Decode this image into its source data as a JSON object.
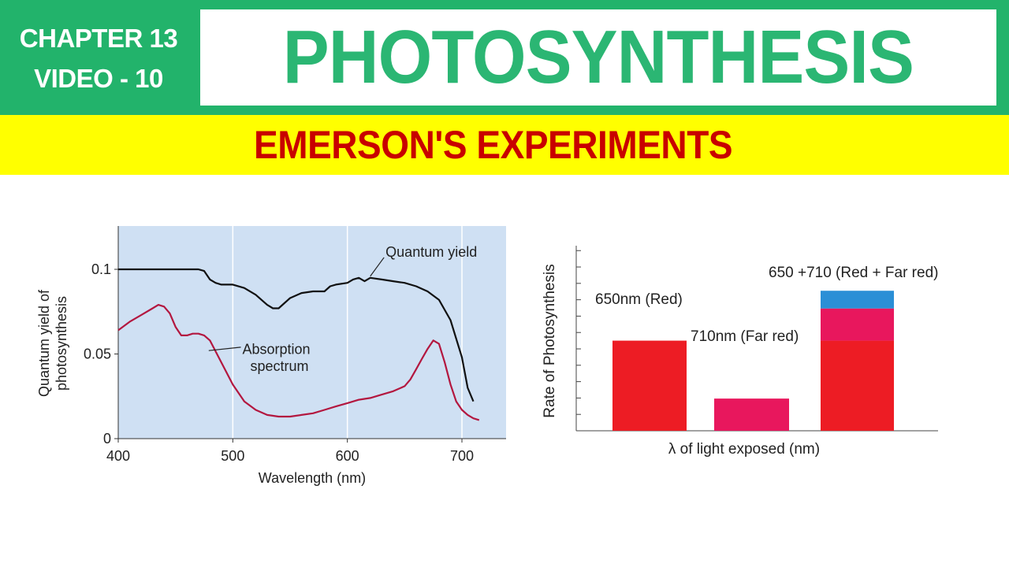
{
  "header": {
    "chapter": "CHAPTER 13",
    "video": "VIDEO - 10",
    "title": "PHOTOSYNTHESIS",
    "subtitle": "EMERSON'S EXPERIMENTS"
  },
  "colors": {
    "header_green": "#22b36b",
    "title_green": "#2bb673",
    "subtitle_band": "#ffff00",
    "subtitle_text": "#c80000",
    "plot_background": "#cfe0f3",
    "quantum_yield_line": "#111111",
    "absorption_line": "#b3173f",
    "red_bar": "#ed1c24",
    "far_red_bar": "#e8175d",
    "enhancement_bar": "#2b8fd6"
  },
  "chart_data": [
    {
      "type": "line",
      "title": "",
      "xlabel": "Wavelength (nm)",
      "ylabel": "Quantum yield of photosynthesis",
      "xlim": [
        400,
        720
      ],
      "ylim": [
        0,
        0.125
      ],
      "xticks": [
        "400",
        "500",
        "600",
        "700"
      ],
      "yticks": [
        "0",
        "0.05",
        "0.1"
      ],
      "grid": "vertical",
      "series": [
        {
          "name": "Quantum yield",
          "x": [
            400,
            420,
            440,
            460,
            470,
            475,
            480,
            485,
            490,
            500,
            510,
            520,
            530,
            535,
            540,
            545,
            550,
            560,
            570,
            580,
            585,
            590,
            600,
            605,
            610,
            615,
            620,
            630,
            640,
            650,
            660,
            670,
            680,
            690,
            700,
            705,
            710
          ],
          "y": [
            0.1,
            0.1,
            0.1,
            0.1,
            0.1,
            0.099,
            0.094,
            0.092,
            0.091,
            0.091,
            0.089,
            0.085,
            0.079,
            0.077,
            0.077,
            0.08,
            0.083,
            0.086,
            0.087,
            0.087,
            0.09,
            0.091,
            0.092,
            0.094,
            0.095,
            0.093,
            0.095,
            0.094,
            0.093,
            0.092,
            0.09,
            0.087,
            0.082,
            0.07,
            0.048,
            0.03,
            0.022
          ]
        },
        {
          "name": "Absorption spectrum",
          "x": [
            400,
            410,
            420,
            430,
            435,
            440,
            445,
            450,
            455,
            460,
            465,
            470,
            475,
            480,
            490,
            500,
            510,
            520,
            530,
            540,
            550,
            560,
            570,
            580,
            590,
            600,
            610,
            620,
            630,
            640,
            650,
            655,
            660,
            665,
            670,
            675,
            680,
            685,
            690,
            695,
            700,
            705,
            710,
            715
          ],
          "y": [
            0.064,
            0.069,
            0.073,
            0.077,
            0.079,
            0.078,
            0.074,
            0.066,
            0.061,
            0.061,
            0.062,
            0.062,
            0.061,
            0.058,
            0.045,
            0.032,
            0.022,
            0.017,
            0.014,
            0.013,
            0.013,
            0.014,
            0.015,
            0.017,
            0.019,
            0.021,
            0.023,
            0.024,
            0.026,
            0.028,
            0.031,
            0.035,
            0.041,
            0.047,
            0.053,
            0.058,
            0.056,
            0.045,
            0.032,
            0.022,
            0.017,
            0.014,
            0.012,
            0.011
          ]
        }
      ],
      "annotations": [
        {
          "series": "Quantum yield",
          "text": "Quantum yield"
        },
        {
          "series": "Absorption spectrum",
          "text_line1": "Absorption",
          "text_line2": "spectrum"
        }
      ]
    },
    {
      "type": "bar",
      "title": "",
      "xlabel": "λ of light exposed (nm)",
      "ylabel": "Rate of Photosynthesis",
      "ylim": [
        0,
        11.5
      ],
      "grid": "none",
      "bars": [
        {
          "label": "650nm (Red)",
          "segments": [
            {
              "value": 5.6,
              "color": "red"
            }
          ]
        },
        {
          "label": "710nm (Far red)",
          "segments": [
            {
              "value": 2.0,
              "color": "far_red"
            }
          ]
        },
        {
          "label": "650 +710 (Red + Far red)",
          "segments": [
            {
              "value": 5.6,
              "color": "red"
            },
            {
              "value": 2.0,
              "color": "far_red"
            },
            {
              "value": 1.1,
              "color": "enhancement"
            }
          ]
        }
      ]
    }
  ]
}
